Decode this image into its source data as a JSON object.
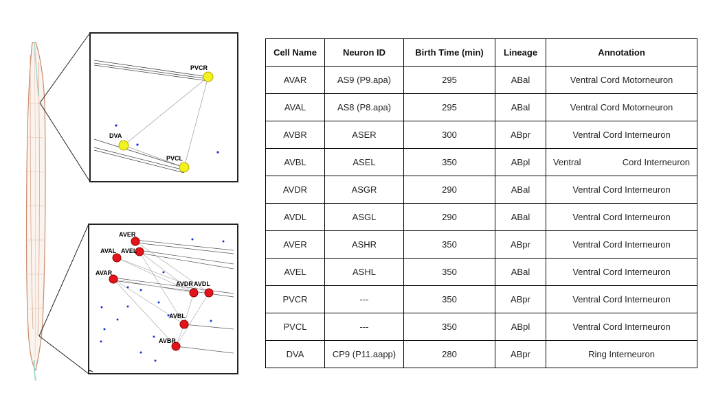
{
  "figure": {
    "top_panel": {
      "labels": {
        "pvcr": "PVCR",
        "dva": "DVA",
        "pvcl": "PVCL"
      }
    },
    "bottom_panel": {
      "labels": {
        "aver": "AVER",
        "aval": "AVAL",
        "avel": "AVEL",
        "avar": "AVAR",
        "avdr": "AVDR",
        "avdl": "AVDL",
        "avbl": "AVBL",
        "avbr": "AVBR"
      }
    },
    "colors": {
      "yellow_node": "#f2f21c",
      "red_node": "#e3141b",
      "blue_dot": "#1a2fd6",
      "worm_outline": "#c98a6b",
      "worm_tip": "#9fdccf"
    }
  },
  "table": {
    "headers": [
      "Cell Name",
      "Neuron ID",
      "Birth Time (min)",
      "Lineage",
      "Annotation"
    ],
    "rows": [
      [
        "AVAR",
        "AS9 (P9.apa)",
        "295",
        "ABal",
        "Ventral Cord Motorneuron"
      ],
      [
        "AVAL",
        "AS8 (P8.apa)",
        "295",
        "ABal",
        "Ventral Cord Motorneuron"
      ],
      [
        "AVBR",
        "ASER",
        "300",
        "ABpr",
        "Ventral Cord Interneuron"
      ],
      [
        "AVBL",
        "ASEL",
        "350",
        "ABpl",
        "Ventral Cord Interneuron"
      ],
      [
        "AVDR",
        "ASGR",
        "290",
        "ABal",
        "Ventral Cord Interneuron"
      ],
      [
        "AVDL",
        "ASGL",
        "290",
        "ABal",
        "Ventral Cord Interneuron"
      ],
      [
        "AVER",
        "ASHR",
        "350",
        "ABpr",
        "Ventral Cord Interneuron"
      ],
      [
        "AVEL",
        "ASHL",
        "350",
        "ABal",
        "Ventral Cord Interneuron"
      ],
      [
        "PVCR",
        "---",
        "350",
        "ABpr",
        "Ventral Cord Interneuron"
      ],
      [
        "PVCL",
        "---",
        "350",
        "ABpl",
        "Ventral Cord Interneuron"
      ],
      [
        "DVA",
        "CP9 (P11.aapp)",
        "280",
        "ABpr",
        "Ring Interneuron"
      ]
    ],
    "split_annotation": {
      "left": "Ventral",
      "right": "Cord Interneuron"
    }
  }
}
